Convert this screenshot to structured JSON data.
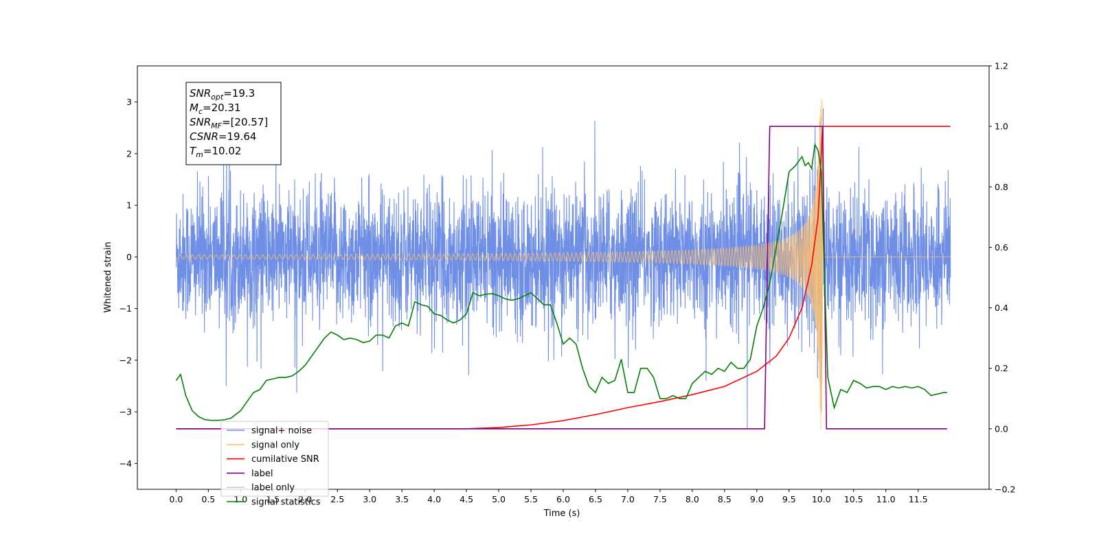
{
  "chart_data": {
    "type": "line",
    "title": "",
    "xlabel": "Time (s)",
    "ylabel": "Whitened strain",
    "y2label": "",
    "xlim": [
      -0.6,
      12.6
    ],
    "ylim": [
      -4.5,
      3.7
    ],
    "y2lim": [
      -0.2,
      1.2
    ],
    "xticks": [
      0.0,
      0.5,
      1.0,
      1.5,
      2.0,
      2.5,
      3.0,
      3.5,
      4.0,
      4.5,
      5.0,
      5.5,
      6.0,
      6.5,
      7.0,
      7.5,
      8.0,
      8.5,
      9.0,
      9.5,
      10.0,
      10.5,
      11.0,
      11.5
    ],
    "xtick_labels": [
      "0.0",
      "0.5",
      "1.0",
      "1.5",
      "2.0",
      "2.5",
      "3.0",
      "3.5",
      "4.0",
      "4.5",
      "5.0",
      "5.5",
      "6.0",
      "6.5",
      "7.0",
      "7.5",
      "8.0",
      "8.5",
      "9.0",
      "9.5",
      "10.0",
      "10.5",
      "11.0",
      "11.5"
    ],
    "yticks": [
      -4,
      -3,
      -2,
      -1,
      0,
      1,
      2,
      3
    ],
    "ytick_labels": [
      "−4",
      "−3",
      "−2",
      "−1",
      "0",
      "1",
      "2",
      "3"
    ],
    "y2ticks": [
      -0.2,
      0.0,
      0.2,
      0.4,
      0.6,
      0.8,
      1.0,
      1.2
    ],
    "y2tick_labels": [
      "−0.2",
      "0.0",
      "0.2",
      "0.4",
      "0.6",
      "0.8",
      "1.0",
      "1.2"
    ],
    "grid": false,
    "legend_position": "lower-left",
    "annotation": [
      {
        "base": "SNR",
        "sub": "opt",
        "value": "=19.3"
      },
      {
        "base": "M",
        "sub": "c",
        "value": "=20.31"
      },
      {
        "base": "SNR",
        "sub": "MF",
        "value": "=[20.57]"
      },
      {
        "base": "CSNR",
        "sub": "",
        "value": "=19.64"
      },
      {
        "base": "T",
        "sub": "m",
        "value": "=10.02"
      }
    ],
    "series": [
      {
        "name": "signal+ noise",
        "axis": "left",
        "color": "#6f8fe6",
        "kind": "noise",
        "x_range": [
          0.0,
          12.0
        ],
        "amplitude_range": [
          -3.7,
          3.1
        ],
        "typical_amplitude": 1.3
      },
      {
        "name": "signal only",
        "axis": "left",
        "color": "#ffbf6a",
        "kind": "chirp",
        "x_range": [
          0.0,
          12.0
        ],
        "merger_time": 10.02,
        "peak_amplitude": 3.35
      },
      {
        "name": "cumilative SNR",
        "axis": "right",
        "color": "#ff0000",
        "x": [
          0.0,
          4.0,
          4.5,
          5.0,
          5.5,
          6.0,
          6.5,
          7.0,
          7.5,
          8.0,
          8.5,
          9.0,
          9.3,
          9.5,
          9.7,
          9.85,
          9.95,
          10.02,
          10.05,
          12.0
        ],
        "y": [
          0.0,
          0.0,
          0.0,
          0.004,
          0.013,
          0.027,
          0.047,
          0.07,
          0.09,
          0.113,
          0.14,
          0.19,
          0.24,
          0.3,
          0.4,
          0.54,
          0.7,
          1.0,
          1.0,
          1.0
        ]
      },
      {
        "name": "label",
        "axis": "right",
        "color": "#800080",
        "x": [
          0.0,
          9.12,
          9.2,
          10.02,
          10.08,
          11.95
        ],
        "y": [
          0.0,
          0.0,
          1.0,
          1.0,
          0.0,
          0.0
        ]
      },
      {
        "name": "label only",
        "axis": "right",
        "color": "#cccccc",
        "x": [],
        "y": []
      },
      {
        "name": "signal statistics",
        "axis": "right",
        "color": "#008000",
        "x": [
          0.0,
          0.07,
          0.15,
          0.25,
          0.35,
          0.45,
          0.55,
          0.65,
          0.75,
          0.85,
          1.0,
          1.1,
          1.2,
          1.3,
          1.4,
          1.5,
          1.6,
          1.7,
          1.8,
          1.9,
          2.0,
          2.1,
          2.2,
          2.3,
          2.4,
          2.5,
          2.6,
          2.7,
          2.8,
          2.9,
          3.0,
          3.1,
          3.2,
          3.3,
          3.4,
          3.5,
          3.6,
          3.7,
          3.8,
          3.9,
          4.0,
          4.1,
          4.2,
          4.3,
          4.4,
          4.5,
          4.6,
          4.7,
          4.8,
          4.9,
          5.0,
          5.1,
          5.2,
          5.3,
          5.4,
          5.5,
          5.6,
          5.7,
          5.8,
          5.9,
          6.0,
          6.1,
          6.2,
          6.3,
          6.4,
          6.5,
          6.6,
          6.7,
          6.8,
          6.9,
          7.0,
          7.1,
          7.2,
          7.3,
          7.4,
          7.5,
          7.6,
          7.7,
          7.8,
          7.9,
          8.0,
          8.1,
          8.2,
          8.3,
          8.4,
          8.5,
          8.6,
          8.7,
          8.8,
          8.9,
          9.0,
          9.1,
          9.2,
          9.3,
          9.4,
          9.5,
          9.6,
          9.7,
          9.75,
          9.8,
          9.85,
          9.9,
          9.95,
          10.0,
          10.05,
          10.1,
          10.2,
          10.3,
          10.4,
          10.5,
          10.6,
          10.7,
          10.8,
          10.9,
          11.0,
          11.1,
          11.2,
          11.3,
          11.4,
          11.5,
          11.6,
          11.7,
          11.8,
          11.9,
          11.95
        ],
        "y": [
          0.16,
          0.18,
          0.11,
          0.06,
          0.04,
          0.03,
          0.028,
          0.028,
          0.03,
          0.035,
          0.06,
          0.09,
          0.12,
          0.13,
          0.16,
          0.165,
          0.17,
          0.17,
          0.175,
          0.19,
          0.21,
          0.24,
          0.27,
          0.3,
          0.32,
          0.31,
          0.295,
          0.3,
          0.295,
          0.285,
          0.29,
          0.31,
          0.31,
          0.3,
          0.34,
          0.35,
          0.34,
          0.42,
          0.41,
          0.405,
          0.38,
          0.375,
          0.36,
          0.35,
          0.36,
          0.38,
          0.45,
          0.44,
          0.445,
          0.447,
          0.44,
          0.43,
          0.425,
          0.43,
          0.44,
          0.45,
          0.43,
          0.41,
          0.41,
          0.35,
          0.28,
          0.3,
          0.28,
          0.2,
          0.14,
          0.12,
          0.17,
          0.15,
          0.16,
          0.23,
          0.12,
          0.12,
          0.2,
          0.2,
          0.17,
          0.1,
          0.1,
          0.11,
          0.1,
          0.1,
          0.15,
          0.17,
          0.19,
          0.18,
          0.2,
          0.19,
          0.22,
          0.2,
          0.2,
          0.23,
          0.34,
          0.4,
          0.48,
          0.6,
          0.72,
          0.85,
          0.87,
          0.9,
          0.87,
          0.88,
          0.86,
          0.94,
          0.92,
          0.85,
          0.5,
          0.17,
          0.07,
          0.13,
          0.12,
          0.16,
          0.15,
          0.135,
          0.14,
          0.14,
          0.13,
          0.14,
          0.135,
          0.14,
          0.135,
          0.14,
          0.13,
          0.11,
          0.115,
          0.12,
          0.12
        ]
      }
    ]
  }
}
